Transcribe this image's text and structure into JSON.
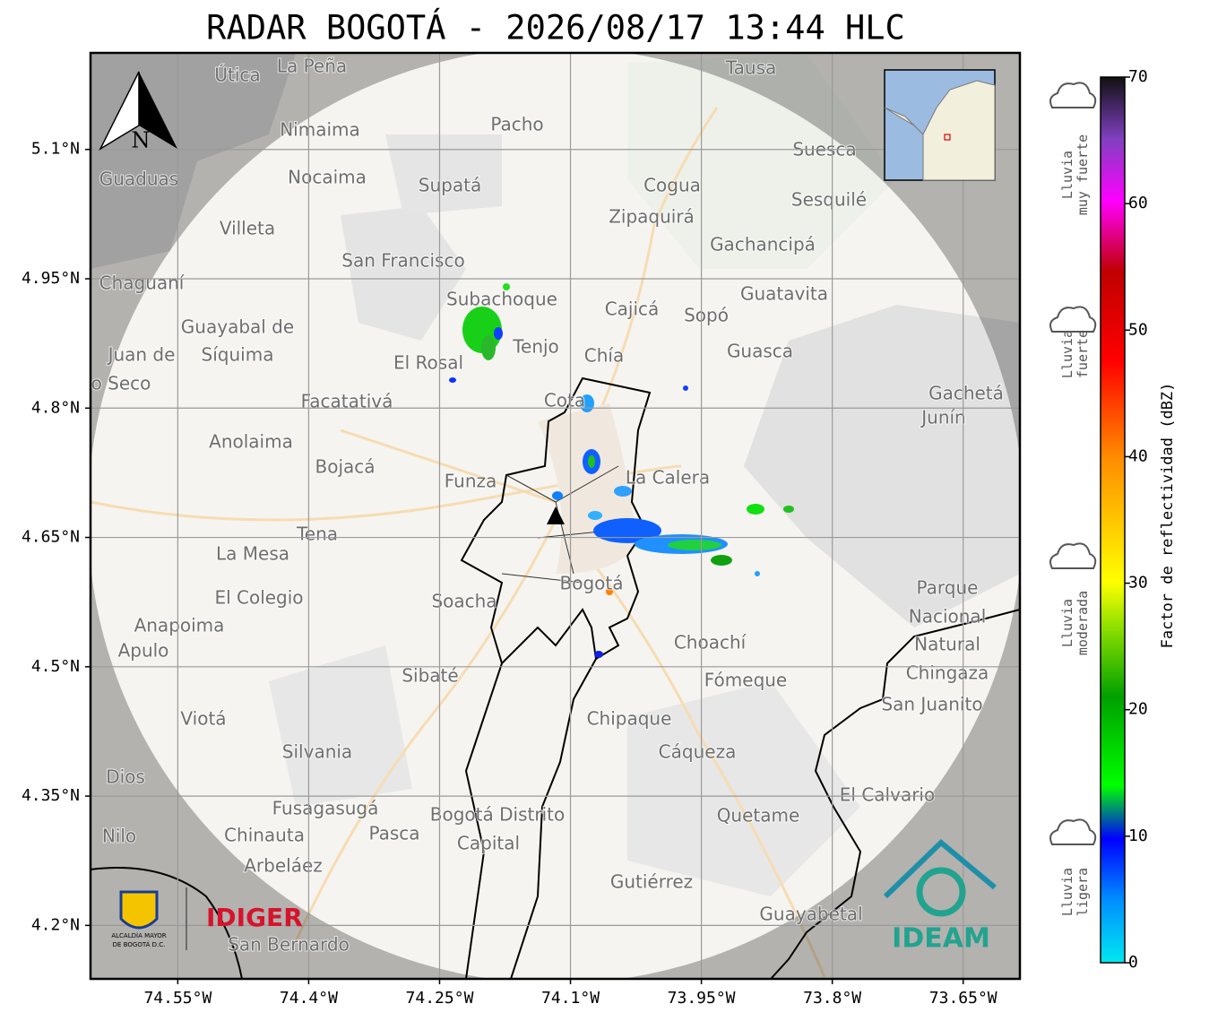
{
  "title": "RADAR BOGOTÁ - 2026/08/17 13:44 HLC",
  "map": {
    "xlim": [
      -74.65,
      -73.585
    ],
    "ylim": [
      4.138,
      5.212
    ],
    "xticks": [
      {
        "value": -74.55,
        "label": "74.55°W"
      },
      {
        "value": -74.4,
        "label": "74.4°W"
      },
      {
        "value": -74.25,
        "label": "74.25°W"
      },
      {
        "value": -74.1,
        "label": "74.1°W"
      },
      {
        "value": -73.95,
        "label": "73.95°W"
      },
      {
        "value": -73.8,
        "label": "73.8°W"
      },
      {
        "value": -73.65,
        "label": "73.65°W"
      }
    ],
    "yticks": [
      {
        "value": 5.1,
        "label": "5.1°N"
      },
      {
        "value": 4.95,
        "label": "4.95°N"
      },
      {
        "value": 4.8,
        "label": "4.8°N"
      },
      {
        "value": 4.65,
        "label": "4.65°N"
      },
      {
        "value": 4.5,
        "label": "4.5°N"
      },
      {
        "value": 4.35,
        "label": "4.35°N"
      },
      {
        "value": 4.2,
        "label": "4.2°N"
      }
    ],
    "grid": true,
    "north": "N",
    "places": [
      "La Peña",
      "Útica",
      "Tausa",
      "Pacho",
      "Nimaima",
      "Suesca",
      "Guaduas",
      "Nocaima",
      "Supatá",
      "Cogua",
      "Sesquilé",
      "Zipaquirá",
      "Villeta",
      "Gachancipá",
      "San Francisco",
      "Chaguaní",
      "Guatavita",
      "Subachoque",
      "Cajicá",
      "Sopó",
      "Guayabal de",
      "Síquima",
      "Juan de",
      "o Seco",
      "Tenjo",
      "Guasca",
      "Chía",
      "El Rosal",
      "Cota",
      "Facatativá",
      "Gachetá",
      "Junín",
      "Anolaima",
      "Bojacá",
      "Funza",
      "La Calera",
      "Tena",
      "La Mesa",
      "Bogotá",
      "Parque",
      "Nacional",
      "Natural",
      "Chingaza",
      "El Colegio",
      "Soacha",
      "Anapoima",
      "Apulo",
      "Choachí",
      "Sibaté",
      "Fómeque",
      "San Juanito",
      "Viotá",
      "Chipaque",
      "Silvania",
      "Cáqueza",
      "Dios",
      "El Calvario",
      "Fusagasugá",
      "Bogotá Distrito",
      "Capital",
      "Quetame",
      "Chinauta",
      "Pasca",
      "Nilo",
      "Arbeláez",
      "Gutiérrez",
      "Guayabetal",
      "San Bernardo"
    ]
  },
  "colorbar": {
    "label": "Factor de reflectividad (dBZ)",
    "lim": [
      0,
      70
    ],
    "ticks": [
      0,
      10,
      20,
      30,
      40,
      50,
      60,
      70
    ]
  },
  "rain_legend": [
    [
      "Lluvia",
      "muy fuerte"
    ],
    [
      "Lluvia",
      "fuerte"
    ],
    [
      "Lluvia",
      "moderada"
    ],
    [
      "Lluvia",
      "ligera"
    ]
  ],
  "logos": {
    "alcaldia": [
      "ALCALDÍA MAYOR",
      "DE BOGOTÁ D.C."
    ],
    "idiger": "IDIGER",
    "ideam": "IDEAM"
  }
}
